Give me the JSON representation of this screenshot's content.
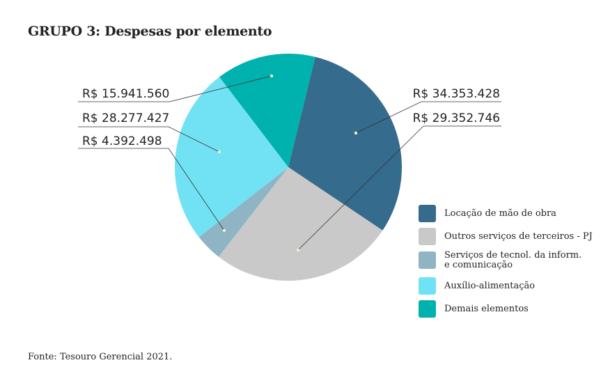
{
  "chart_data": {
    "type": "pie",
    "title": "GRUPO 3: Despesas por elemento",
    "source": "Fonte: Tesouro Gerencial 2021.",
    "legend_position": "right",
    "slices": [
      {
        "label": "Locação de mão de obra",
        "value": 34353428,
        "display": "R$ 34.353.428",
        "color": "#356b8c"
      },
      {
        "label": "Outros serviços de terceiros - PJ",
        "value": 29352746,
        "display": "R$ 29.352.746",
        "color": "#c9c9c9"
      },
      {
        "label": "Serviços de tecnol. da inform. e comunicação",
        "label_lines": [
          "Serviços de tecnol. da inform.",
          "e comunicação"
        ],
        "value": 4392498,
        "display": "R$ 4.392.498",
        "color": "#8fb5c5"
      },
      {
        "label": "Auxílio-alimentação",
        "value": 28277427,
        "display": "R$ 28.277.427",
        "color": "#71e2f4"
      },
      {
        "label": "Demais elementos",
        "value": 15941560,
        "display": "R$ 15.941.560",
        "color": "#00b2ae"
      }
    ]
  }
}
